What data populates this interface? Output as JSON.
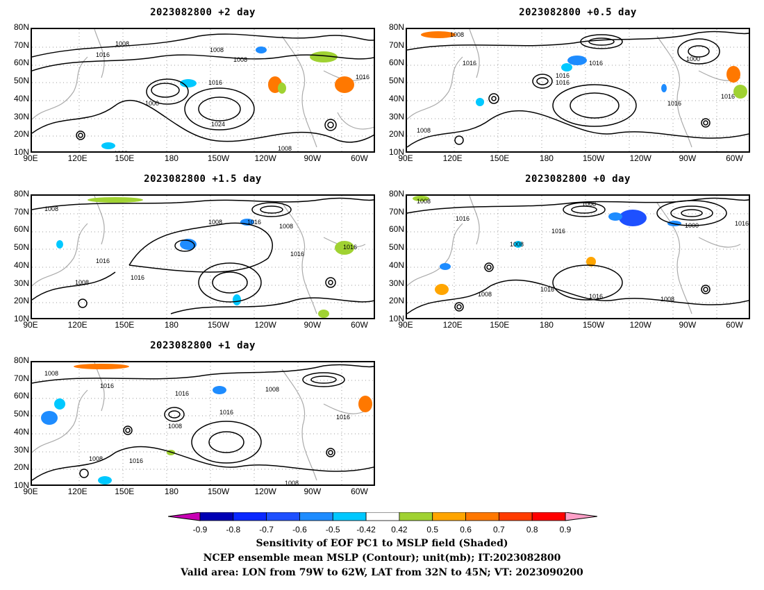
{
  "panels": [
    {
      "id": "p2",
      "title": "2023082800  +2  day"
    },
    {
      "id": "p05",
      "title": "2023082800  +0.5  day"
    },
    {
      "id": "p15",
      "title": "2023082800  +1.5  day"
    },
    {
      "id": "p0",
      "title": "2023082800  +0  day"
    },
    {
      "id": "p1",
      "title": "2023082800  +1  day"
    }
  ],
  "axes": {
    "lat_ticks": [
      "80N",
      "70N",
      "60N",
      "50N",
      "40N",
      "30N",
      "20N",
      "10N"
    ],
    "lon_ticks": [
      "90E",
      "120E",
      "150E",
      "180",
      "150W",
      "120W",
      "90W",
      "60W"
    ],
    "lon_range": [
      90,
      310
    ],
    "lat_range": [
      10,
      80
    ]
  },
  "contour_labels": {
    "p2": [
      "1008",
      "1016",
      "1008",
      "1008",
      "1016",
      "1016",
      "1000",
      "1024",
      "1008",
      "1008"
    ],
    "p05": [
      "1008",
      "1016",
      "1016",
      "1016",
      "1016",
      "1000",
      "1016",
      "1016",
      "1008"
    ],
    "p15": [
      "1008",
      "1008",
      "1016",
      "1008",
      "1016",
      "1016",
      "1016",
      "1008",
      "1016"
    ],
    "p0": [
      "1008",
      "1016",
      "1008",
      "1008",
      "1016",
      "1000",
      "1016",
      "1016",
      "1008",
      "1016",
      "1008"
    ],
    "p1": [
      "1008",
      "1016",
      "1016",
      "1008",
      "1016",
      "1008",
      "1016",
      "1016",
      "1008",
      "1008"
    ]
  },
  "colorbar": {
    "labels": [
      "-0.9",
      "-0.8",
      "-0.7",
      "-0.6",
      "-0.5",
      "-0.42",
      "0.42",
      "0.5",
      "0.6",
      "0.7",
      "0.8",
      "0.9"
    ],
    "colors": [
      "#0000b4",
      "#0a28ff",
      "#1e50ff",
      "#1e8cff",
      "#00c8ff",
      "#ffffff",
      "#a0d232",
      "#ffa500",
      "#ff7800",
      "#ff3c00",
      "#ff0000"
    ],
    "low_color": "#c800b4",
    "high_color": "#ffa0c8"
  },
  "caption": {
    "line1": "Sensitivity of EOF PC1 to MSLP field (Shaded)",
    "line2": "NCEP ensemble mean MSLP (Contour); unit(mb); IT:2023082800",
    "line3": "Valid area: LON from 79W to 62W, LAT from 32N to 45N; VT: 2023090200"
  }
}
